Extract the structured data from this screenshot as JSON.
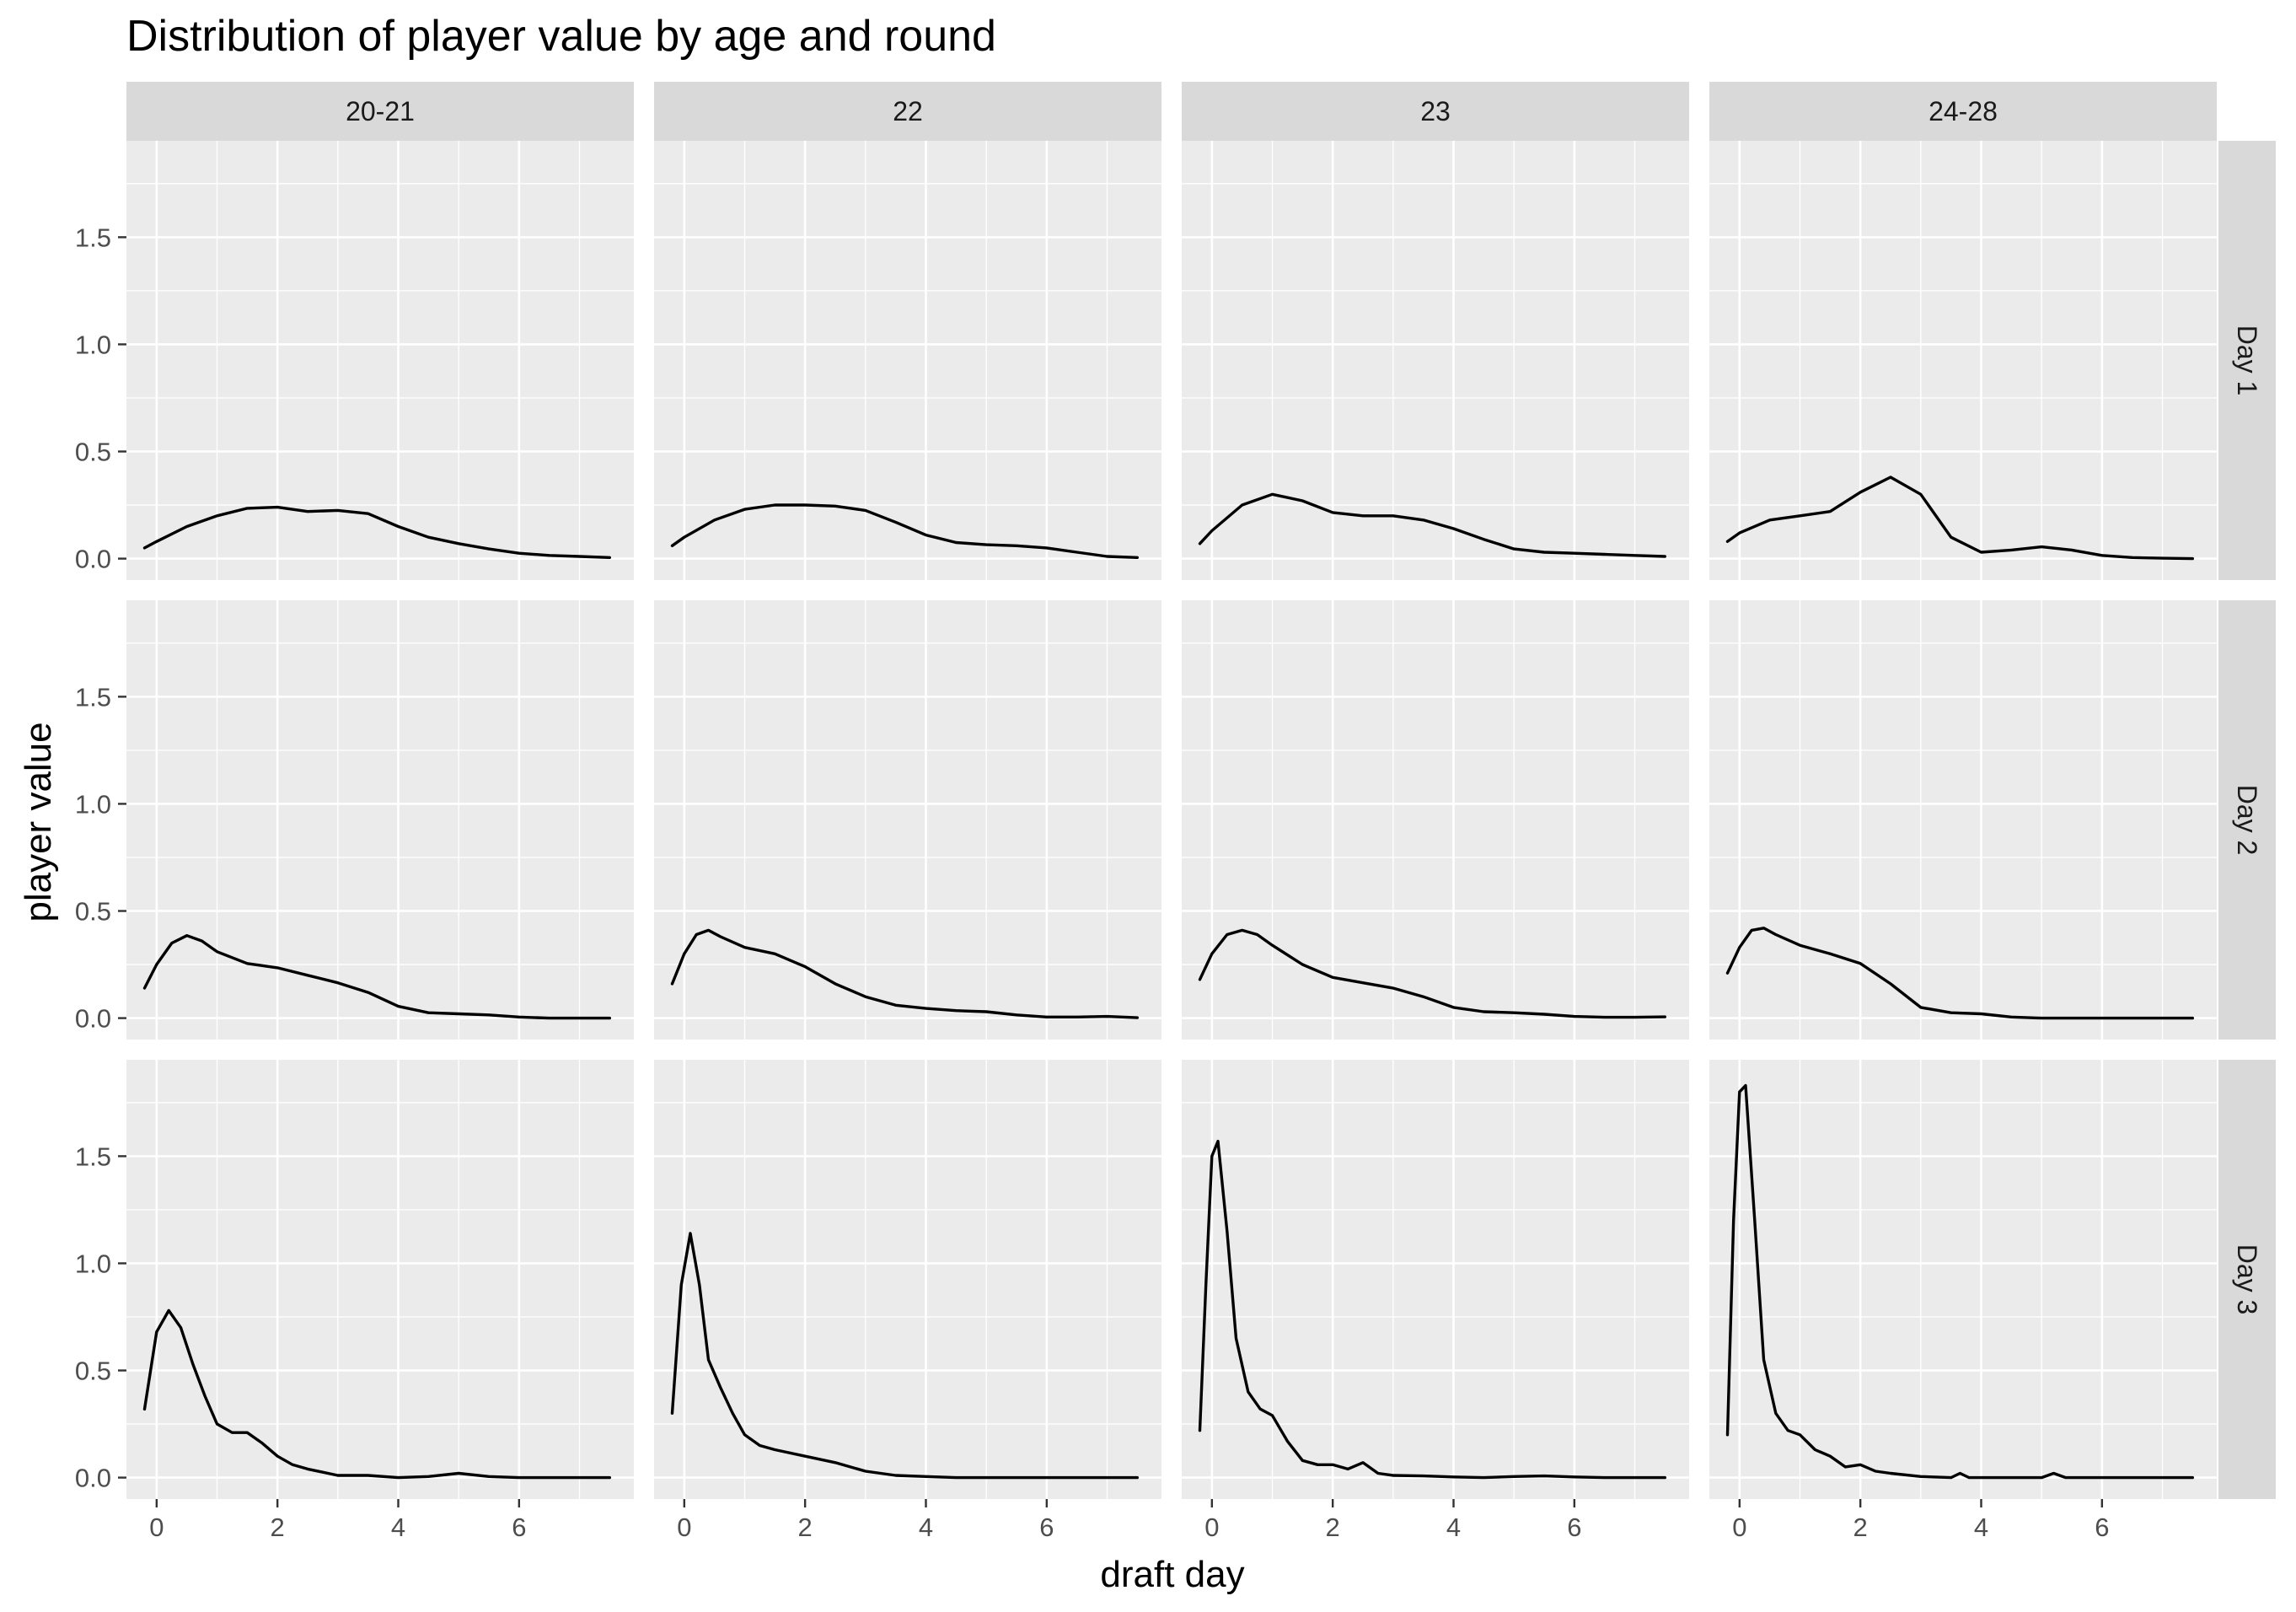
{
  "chart_data": {
    "type": "area",
    "title": "Distribution of player value by age and round",
    "xlabel": "draft day",
    "ylabel": "player value",
    "xlim": [
      -0.5,
      7.9
    ],
    "ylim": [
      -0.1,
      1.95
    ],
    "x_ticks": [
      0,
      2,
      4,
      6
    ],
    "x_tick_labels": [
      "0",
      "2",
      "4",
      "6"
    ],
    "y_ticks": [
      0,
      0.5,
      1,
      1.5
    ],
    "y_tick_labels": [
      "0.0",
      "0.5",
      "1.0",
      "1.5"
    ],
    "grid": true,
    "legend": "none",
    "facet_columns": [
      "20-21",
      "22",
      "23",
      "24-28"
    ],
    "facet_rows": [
      "Day 1",
      "Day 2",
      "Day 3"
    ],
    "colors": {
      "panel_bg": "#ebebeb",
      "strip_bg": "#d9d9d9",
      "grid": "#ffffff",
      "line": "#000000"
    },
    "panels": [
      {
        "row": "Day 1",
        "col": "20-21",
        "x": [
          -0.2,
          0,
          0.5,
          1,
          1.5,
          2,
          2.5,
          3,
          3.5,
          4,
          4.5,
          5,
          5.5,
          6,
          6.5,
          7,
          7.5
        ],
        "y": [
          0.05,
          0.08,
          0.15,
          0.2,
          0.235,
          0.24,
          0.22,
          0.225,
          0.21,
          0.15,
          0.1,
          0.07,
          0.045,
          0.025,
          0.015,
          0.01,
          0.005
        ]
      },
      {
        "row": "Day 1",
        "col": "22",
        "x": [
          -0.2,
          0,
          0.5,
          1,
          1.5,
          2,
          2.5,
          3,
          3.5,
          4,
          4.5,
          5,
          5.5,
          6,
          6.5,
          7,
          7.5
        ],
        "y": [
          0.06,
          0.1,
          0.18,
          0.23,
          0.25,
          0.25,
          0.245,
          0.225,
          0.17,
          0.11,
          0.075,
          0.065,
          0.06,
          0.05,
          0.03,
          0.01,
          0.005
        ]
      },
      {
        "row": "Day 1",
        "col": "23",
        "x": [
          -0.2,
          0,
          0.5,
          1,
          1.5,
          2,
          2.5,
          3,
          3.5,
          4,
          4.5,
          5,
          5.5,
          6,
          6.5,
          7,
          7.5
        ],
        "y": [
          0.07,
          0.13,
          0.25,
          0.3,
          0.27,
          0.215,
          0.2,
          0.2,
          0.18,
          0.14,
          0.09,
          0.045,
          0.03,
          0.025,
          0.02,
          0.015,
          0.01
        ]
      },
      {
        "row": "Day 1",
        "col": "24-28",
        "x": [
          -0.2,
          0,
          0.5,
          1,
          1.5,
          2,
          2.5,
          3,
          3.5,
          4,
          4.5,
          5,
          5.5,
          6,
          6.5,
          7,
          7.5
        ],
        "y": [
          0.08,
          0.12,
          0.18,
          0.2,
          0.22,
          0.31,
          0.38,
          0.3,
          0.1,
          0.03,
          0.04,
          0.055,
          0.04,
          0.015,
          0.005,
          0.002,
          0
        ]
      },
      {
        "row": "Day 2",
        "col": "20-21",
        "x": [
          -0.2,
          0,
          0.25,
          0.5,
          0.75,
          1,
          1.5,
          2,
          2.5,
          3,
          3.5,
          4,
          4.5,
          5,
          5.5,
          6,
          6.5,
          7,
          7.5
        ],
        "y": [
          0.14,
          0.25,
          0.35,
          0.385,
          0.36,
          0.31,
          0.255,
          0.235,
          0.2,
          0.165,
          0.12,
          0.055,
          0.025,
          0.02,
          0.015,
          0.005,
          0,
          0,
          0
        ]
      },
      {
        "row": "Day 2",
        "col": "22",
        "x": [
          -0.2,
          0,
          0.2,
          0.4,
          0.6,
          1,
          1.5,
          2,
          2.5,
          3,
          3.5,
          4,
          4.5,
          5,
          5.5,
          6,
          6.5,
          7,
          7.5
        ],
        "y": [
          0.16,
          0.3,
          0.39,
          0.41,
          0.38,
          0.33,
          0.3,
          0.24,
          0.16,
          0.1,
          0.06,
          0.045,
          0.035,
          0.03,
          0.015,
          0.005,
          0.005,
          0.008,
          0.002
        ]
      },
      {
        "row": "Day 2",
        "col": "23",
        "x": [
          -0.2,
          0,
          0.25,
          0.5,
          0.75,
          1,
          1.5,
          2,
          2.5,
          3,
          3.5,
          4,
          4.5,
          5,
          5.5,
          6,
          6.5,
          7,
          7.5
        ],
        "y": [
          0.18,
          0.3,
          0.39,
          0.41,
          0.39,
          0.34,
          0.25,
          0.19,
          0.165,
          0.14,
          0.1,
          0.05,
          0.03,
          0.025,
          0.018,
          0.008,
          0.004,
          0.004,
          0.006
        ]
      },
      {
        "row": "Day 2",
        "col": "24-28",
        "x": [
          -0.2,
          0,
          0.2,
          0.4,
          0.6,
          1,
          1.5,
          2,
          2.5,
          3,
          3.5,
          4,
          4.5,
          5,
          5.5,
          6,
          6.5,
          7,
          7.5
        ],
        "y": [
          0.21,
          0.33,
          0.41,
          0.42,
          0.39,
          0.34,
          0.3,
          0.255,
          0.16,
          0.05,
          0.025,
          0.02,
          0.005,
          0,
          0,
          0,
          0,
          0,
          0
        ]
      },
      {
        "row": "Day 3",
        "col": "20-21",
        "x": [
          -0.2,
          0,
          0.2,
          0.4,
          0.6,
          0.8,
          1,
          1.25,
          1.5,
          1.75,
          2,
          2.25,
          2.5,
          3,
          3.5,
          4,
          4.5,
          5,
          5.5,
          6,
          6.5,
          7,
          7.5
        ],
        "y": [
          0.32,
          0.68,
          0.78,
          0.7,
          0.53,
          0.38,
          0.25,
          0.21,
          0.21,
          0.16,
          0.1,
          0.06,
          0.04,
          0.01,
          0.01,
          0,
          0.005,
          0.02,
          0.005,
          0,
          0,
          0,
          0
        ]
      },
      {
        "row": "Day 3",
        "col": "22",
        "x": [
          -0.2,
          -0.05,
          0.1,
          0.25,
          0.4,
          0.6,
          0.8,
          1,
          1.25,
          1.5,
          2,
          2.5,
          3,
          3.5,
          4,
          4.5,
          5,
          5.5,
          6,
          6.5,
          7,
          7.5
        ],
        "y": [
          0.3,
          0.9,
          1.14,
          0.9,
          0.55,
          0.42,
          0.3,
          0.2,
          0.15,
          0.13,
          0.1,
          0.07,
          0.03,
          0.01,
          0.005,
          0,
          0,
          0,
          0,
          0,
          0,
          0
        ]
      },
      {
        "row": "Day 3",
        "col": "23",
        "x": [
          -0.2,
          -0.1,
          0,
          0.1,
          0.25,
          0.4,
          0.6,
          0.8,
          1,
          1.25,
          1.5,
          1.75,
          2,
          2.25,
          2.5,
          2.75,
          3,
          3.5,
          4,
          4.5,
          5,
          5.5,
          6,
          6.5,
          7,
          7.5
        ],
        "y": [
          0.22,
          0.9,
          1.5,
          1.57,
          1.15,
          0.65,
          0.4,
          0.32,
          0.29,
          0.17,
          0.08,
          0.06,
          0.06,
          0.04,
          0.07,
          0.02,
          0.01,
          0.008,
          0.003,
          0,
          0.005,
          0.008,
          0.003,
          0,
          0,
          0
        ]
      },
      {
        "row": "Day 3",
        "col": "24-28",
        "x": [
          -0.2,
          -0.1,
          0,
          0.1,
          0.25,
          0.4,
          0.6,
          0.8,
          1,
          1.25,
          1.5,
          1.75,
          2,
          2.25,
          2.5,
          3,
          3.5,
          3.65,
          3.8,
          4.5,
          5,
          5.2,
          5.4,
          6,
          6.5,
          7,
          7.5
        ],
        "y": [
          0.2,
          1.2,
          1.8,
          1.83,
          1.2,
          0.55,
          0.3,
          0.22,
          0.2,
          0.13,
          0.1,
          0.05,
          0.06,
          0.03,
          0.02,
          0.005,
          0,
          0.02,
          0,
          0,
          0,
          0.02,
          0,
          0,
          0,
          0,
          0
        ]
      }
    ]
  }
}
